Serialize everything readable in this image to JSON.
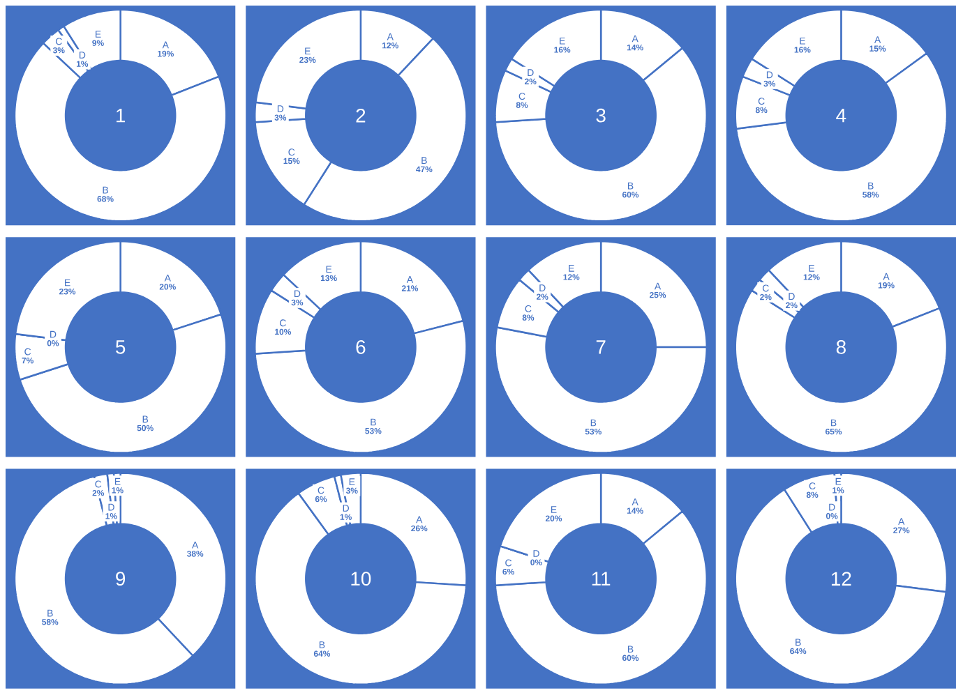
{
  "chart_data": [
    {
      "type": "donut",
      "title": "1",
      "categories": [
        "A",
        "B",
        "C",
        "D",
        "E"
      ],
      "values": [
        19,
        68,
        3,
        1,
        9
      ],
      "value_labels": [
        "19%",
        "68%",
        "3%",
        "1%",
        "9%"
      ],
      "colors": [
        "#ffffff",
        "#ffffff",
        "#ffffff",
        "#ffffff",
        "#ffffff"
      ]
    },
    {
      "type": "donut",
      "title": "2",
      "categories": [
        "A",
        "B",
        "C",
        "D",
        "E"
      ],
      "values": [
        12,
        47,
        15,
        3,
        23
      ],
      "value_labels": [
        "12%",
        "47%",
        "15%",
        "3%",
        "23%"
      ],
      "colors": [
        "#ffffff",
        "#ffffff",
        "#ffffff",
        "#ffffff",
        "#ffffff"
      ]
    },
    {
      "type": "donut",
      "title": "3",
      "categories": [
        "A",
        "B",
        "C",
        "D",
        "E"
      ],
      "values": [
        14,
        60,
        8,
        2,
        16
      ],
      "value_labels": [
        "14%",
        "60%",
        "8%",
        "2%",
        "16%"
      ],
      "colors": [
        "#ffffff",
        "#ffffff",
        "#ffffff",
        "#ffffff",
        "#ffffff"
      ]
    },
    {
      "type": "donut",
      "title": "4",
      "categories": [
        "A",
        "B",
        "C",
        "D",
        "E"
      ],
      "values": [
        15,
        58,
        8,
        3,
        16
      ],
      "value_labels": [
        "15%",
        "58%",
        "8%",
        "3%",
        "16%"
      ],
      "colors": [
        "#ffffff",
        "#ffffff",
        "#ffffff",
        "#ffffff",
        "#ffffff"
      ]
    },
    {
      "type": "donut",
      "title": "5",
      "categories": [
        "A",
        "B",
        "C",
        "D",
        "E"
      ],
      "values": [
        20,
        50,
        7,
        0,
        23
      ],
      "value_labels": [
        "20%",
        "50%",
        "7%",
        "0%",
        "23%"
      ],
      "colors": [
        "#ffffff",
        "#ffffff",
        "#ffffff",
        "#ffffff",
        "#ffffff"
      ]
    },
    {
      "type": "donut",
      "title": "6",
      "categories": [
        "A",
        "B",
        "C",
        "D",
        "E"
      ],
      "values": [
        21,
        53,
        10,
        3,
        13
      ],
      "value_labels": [
        "21%",
        "53%",
        "10%",
        "3%",
        "13%"
      ],
      "colors": [
        "#ffffff",
        "#ffffff",
        "#ffffff",
        "#ffffff",
        "#ffffff"
      ]
    },
    {
      "type": "donut",
      "title": "7",
      "categories": [
        "A",
        "B",
        "C",
        "D",
        "E"
      ],
      "values": [
        25,
        53,
        8,
        2,
        12
      ],
      "value_labels": [
        "25%",
        "53%",
        "8%",
        "2%",
        "12%"
      ],
      "colors": [
        "#ffffff",
        "#ffffff",
        "#ffffff",
        "#ffffff",
        "#ffffff"
      ]
    },
    {
      "type": "donut",
      "title": "8",
      "categories": [
        "A",
        "B",
        "C",
        "D",
        "E"
      ],
      "values": [
        19,
        65,
        2,
        2,
        12
      ],
      "value_labels": [
        "19%",
        "65%",
        "2%",
        "2%",
        "12%"
      ],
      "colors": [
        "#ffffff",
        "#ffffff",
        "#ffffff",
        "#ffffff",
        "#ffffff"
      ]
    },
    {
      "type": "donut",
      "title": "9",
      "categories": [
        "A",
        "B",
        "C",
        "D",
        "E"
      ],
      "values": [
        38,
        58,
        2,
        1,
        1
      ],
      "value_labels": [
        "38%",
        "58%",
        "2%",
        "1%",
        "1%"
      ],
      "colors": [
        "#ffffff",
        "#ffffff",
        "#ffffff",
        "#ffffff",
        "#ffffff"
      ]
    },
    {
      "type": "donut",
      "title": "10",
      "categories": [
        "A",
        "B",
        "C",
        "D",
        "E"
      ],
      "values": [
        26,
        64,
        6,
        1,
        3
      ],
      "value_labels": [
        "26%",
        "64%",
        "6%",
        "1%",
        "3%"
      ],
      "colors": [
        "#ffffff",
        "#ffffff",
        "#ffffff",
        "#ffffff",
        "#ffffff"
      ]
    },
    {
      "type": "donut",
      "title": "11",
      "categories": [
        "A",
        "B",
        "C",
        "D",
        "E"
      ],
      "values": [
        14,
        60,
        6,
        0,
        20
      ],
      "value_labels": [
        "14%",
        "60%",
        "6%",
        "0%",
        "20%"
      ],
      "colors": [
        "#ffffff",
        "#ffffff",
        "#ffffff",
        "#ffffff",
        "#ffffff"
      ]
    },
    {
      "type": "donut",
      "title": "12",
      "categories": [
        "A",
        "B",
        "C",
        "D",
        "E"
      ],
      "values": [
        27,
        64,
        8,
        0,
        1
      ],
      "value_labels": [
        "27%",
        "64%",
        "8%",
        "0%",
        "1%"
      ],
      "colors": [
        "#ffffff",
        "#ffffff",
        "#ffffff",
        "#ffffff",
        "#ffffff"
      ]
    }
  ]
}
